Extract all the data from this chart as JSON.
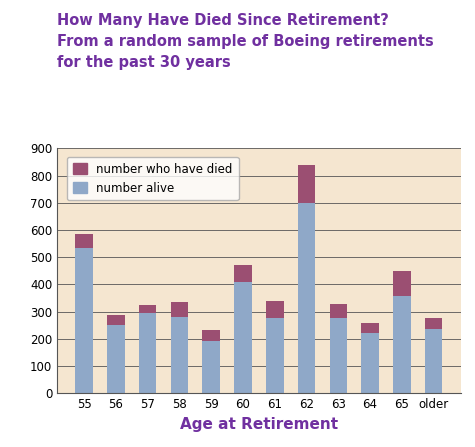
{
  "categories": [
    "55",
    "56",
    "57",
    "58",
    "59",
    "60",
    "61",
    "62",
    "63",
    "64",
    "65",
    "older"
  ],
  "alive": [
    535,
    250,
    295,
    280,
    193,
    410,
    275,
    700,
    275,
    220,
    358,
    238
  ],
  "died": [
    50,
    38,
    28,
    55,
    40,
    60,
    65,
    140,
    55,
    40,
    90,
    38
  ],
  "bar_color_alive": "#8fa8c8",
  "bar_color_died": "#9b4f72",
  "plot_bg_color": "#f5e6d0",
  "fig_bg_color": "#ffffff",
  "title_line1": "How Many Have Died Since Retirement?",
  "title_line2": "From a random sample of Boeing retirements",
  "title_line3": "for the past 30 years",
  "title_color": "#7030a0",
  "xlabel": "Age at Retirement",
  "xlabel_color": "#7030a0",
  "ylim": [
    0,
    900
  ],
  "yticks": [
    0,
    100,
    200,
    300,
    400,
    500,
    600,
    700,
    800,
    900
  ],
  "legend_label_died": "number who have died",
  "legend_label_alive": "number alive",
  "title_fontsize": 10.5,
  "xlabel_fontsize": 11,
  "tick_fontsize": 8.5,
  "legend_fontsize": 8.5,
  "bar_width": 0.55
}
